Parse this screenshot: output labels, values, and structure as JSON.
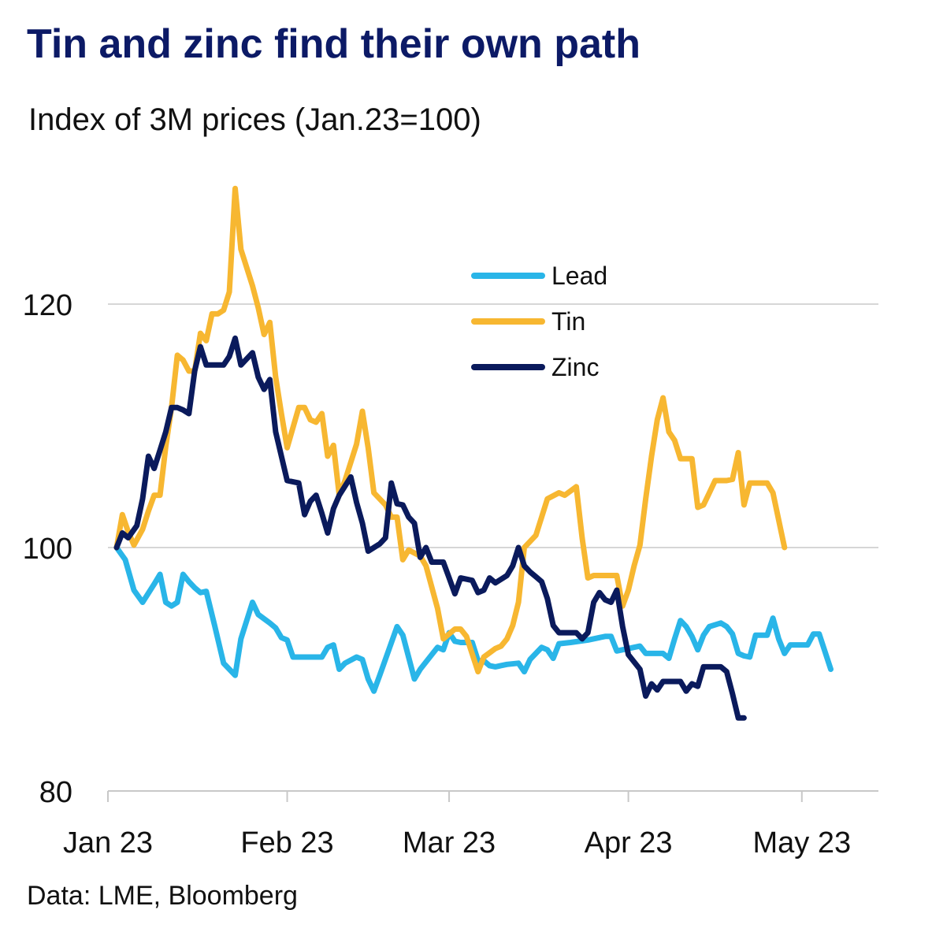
{
  "header": {
    "title": "Tin and zinc find their own path",
    "subtitle": "Index of 3M prices (Jan.23=100)"
  },
  "footer": {
    "source": "Data: LME, Bloomberg"
  },
  "chart_data": {
    "type": "line",
    "title": "Tin and zinc find their own path",
    "subtitle": "Index of 3M prices (Jan.23=100)",
    "xlabel": "",
    "ylabel": "",
    "ylim": [
      80,
      120
    ],
    "yticks": [
      80,
      100,
      120
    ],
    "x_ticks": [
      {
        "label": "Jan 23",
        "day": 0
      },
      {
        "label": "Feb 23",
        "day": 31
      },
      {
        "label": "Mar 23",
        "day": 59
      },
      {
        "label": "Apr 23",
        "day": 90
      },
      {
        "label": "May 23",
        "day": 120
      }
    ],
    "x_range_days": [
      0,
      131
    ],
    "grid": {
      "horizontal": true,
      "vertical": false
    },
    "legend": {
      "placement": "top-right"
    },
    "series": [
      {
        "name": "Lead",
        "color": "#29b5e8",
        "points": [
          [
            1.5,
            100
          ],
          [
            3,
            99
          ],
          [
            4.5,
            96.5
          ],
          [
            6,
            95.5
          ],
          [
            8,
            97
          ],
          [
            9,
            97.8
          ],
          [
            10,
            95.5
          ],
          [
            11,
            95.2
          ],
          [
            12,
            95.5
          ],
          [
            13,
            97.8
          ],
          [
            14,
            97.2
          ],
          [
            15,
            96.7
          ],
          [
            16,
            96.3
          ],
          [
            17,
            96.4
          ],
          [
            18.5,
            93.5
          ],
          [
            20,
            90.5
          ],
          [
            22,
            89.5
          ],
          [
            23,
            92.5
          ],
          [
            25,
            95.5
          ],
          [
            26,
            94.5
          ],
          [
            28,
            93.8
          ],
          [
            29,
            93.4
          ],
          [
            30,
            92.6
          ],
          [
            31,
            92.4
          ],
          [
            32,
            91
          ],
          [
            34,
            91
          ],
          [
            35,
            91
          ],
          [
            37,
            91
          ],
          [
            38,
            91.8
          ],
          [
            39,
            92
          ],
          [
            40,
            90
          ],
          [
            41,
            90.5
          ],
          [
            43,
            91
          ],
          [
            44,
            90.8
          ],
          [
            45,
            89.2
          ],
          [
            46,
            88.2
          ],
          [
            47,
            89.5
          ],
          [
            50,
            93.5
          ],
          [
            51,
            92.8
          ],
          [
            53,
            89.2
          ],
          [
            54,
            90
          ],
          [
            56,
            91.2
          ],
          [
            57,
            91.8
          ],
          [
            58,
            91.6
          ],
          [
            59,
            93
          ],
          [
            60,
            92.3
          ],
          [
            61,
            92.2
          ],
          [
            63,
            92.2
          ],
          [
            64,
            90.7
          ],
          [
            65,
            90.7
          ],
          [
            66,
            90.3
          ],
          [
            67,
            90.2
          ],
          [
            69,
            90.4
          ],
          [
            71,
            90.5
          ],
          [
            72,
            89.8
          ],
          [
            73,
            90.8
          ],
          [
            75,
            91.8
          ],
          [
            76,
            91.6
          ],
          [
            77,
            90.9
          ],
          [
            78,
            92.1
          ],
          [
            80,
            92.2
          ],
          [
            83,
            92.4
          ],
          [
            86,
            92.7
          ],
          [
            87,
            92.7
          ],
          [
            88,
            91.5
          ],
          [
            90,
            91.7
          ],
          [
            92,
            91.9
          ],
          [
            93,
            91.3
          ],
          [
            94,
            91.3
          ],
          [
            96,
            91.3
          ],
          [
            97,
            90.9
          ],
          [
            98,
            92.5
          ],
          [
            99,
            94
          ],
          [
            100,
            93.5
          ],
          [
            101,
            92.7
          ],
          [
            102,
            91.6
          ],
          [
            103,
            92.8
          ],
          [
            104,
            93.5
          ],
          [
            106,
            93.8
          ],
          [
            107,
            93.5
          ],
          [
            108,
            92.9
          ],
          [
            109,
            91.3
          ],
          [
            110,
            91.1
          ],
          [
            111,
            91
          ],
          [
            112,
            92.8
          ],
          [
            113,
            92.8
          ],
          [
            114,
            92.8
          ],
          [
            115,
            94.2
          ],
          [
            116,
            92.5
          ],
          [
            117,
            91.3
          ],
          [
            118,
            92
          ],
          [
            120,
            92
          ],
          [
            121,
            92
          ],
          [
            122,
            92.9
          ],
          [
            123,
            92.9
          ],
          [
            125,
            90
          ]
        ]
      },
      {
        "name": "Tin",
        "color": "#f7b731",
        "points": [
          [
            1.5,
            100
          ],
          [
            2.5,
            102.7
          ],
          [
            3.5,
            101.3
          ],
          [
            4.5,
            100.2
          ],
          [
            6,
            101.5
          ],
          [
            7,
            103
          ],
          [
            8,
            104.3
          ],
          [
            9,
            104.3
          ],
          [
            10,
            108.3
          ],
          [
            11,
            111.5
          ],
          [
            12,
            115.8
          ],
          [
            13,
            115.4
          ],
          [
            14,
            114.5
          ],
          [
            15,
            114.5
          ],
          [
            16,
            117.6
          ],
          [
            17,
            117
          ],
          [
            18,
            119.2
          ],
          [
            19,
            119.2
          ],
          [
            20,
            119.5
          ],
          [
            21,
            121
          ],
          [
            22,
            129.5
          ],
          [
            23,
            124.5
          ],
          [
            25,
            121.5
          ],
          [
            26,
            119.7
          ],
          [
            27,
            117.5
          ],
          [
            28,
            118.5
          ],
          [
            29,
            114
          ],
          [
            30,
            111
          ],
          [
            31,
            108.2
          ],
          [
            33,
            111.5
          ],
          [
            34,
            111.5
          ],
          [
            35,
            110.5
          ],
          [
            36,
            110.3
          ],
          [
            37,
            111
          ],
          [
            38,
            107.5
          ],
          [
            39,
            108.4
          ],
          [
            40,
            104.3
          ],
          [
            41,
            105.5
          ],
          [
            43,
            108.5
          ],
          [
            44,
            111.2
          ],
          [
            45,
            108.2
          ],
          [
            46,
            104.5
          ],
          [
            48,
            103.5
          ],
          [
            49,
            102.5
          ],
          [
            50,
            102.5
          ],
          [
            51,
            99
          ],
          [
            52,
            99.8
          ],
          [
            54,
            99.3
          ],
          [
            55,
            98.5
          ],
          [
            57,
            95
          ],
          [
            58,
            92.5
          ],
          [
            60,
            93.3
          ],
          [
            61,
            93.3
          ],
          [
            62,
            92.7
          ],
          [
            64,
            89.8
          ],
          [
            65,
            91
          ],
          [
            67,
            91.7
          ],
          [
            68,
            91.9
          ],
          [
            69,
            92.5
          ],
          [
            70,
            93.6
          ],
          [
            71,
            95.5
          ],
          [
            72,
            100
          ],
          [
            74,
            101
          ],
          [
            75,
            102.5
          ],
          [
            76,
            104
          ],
          [
            78,
            104.5
          ],
          [
            79,
            104.3
          ],
          [
            81,
            105
          ],
          [
            82,
            100.8
          ],
          [
            83,
            97.5
          ],
          [
            84,
            97.7
          ],
          [
            86,
            97.7
          ],
          [
            88,
            97.7
          ],
          [
            89,
            95.2
          ],
          [
            90,
            96.5
          ],
          [
            91,
            98.5
          ],
          [
            92,
            100.2
          ],
          [
            93,
            104
          ],
          [
            94,
            107.5
          ],
          [
            95,
            110.5
          ],
          [
            96,
            112.3
          ],
          [
            97,
            109.5
          ],
          [
            98,
            108.8
          ],
          [
            99,
            107.3
          ],
          [
            101,
            107.3
          ],
          [
            102,
            103.3
          ],
          [
            103,
            103.5
          ],
          [
            104,
            104.5
          ],
          [
            105,
            105.5
          ],
          [
            107,
            105.5
          ],
          [
            108,
            105.6
          ],
          [
            109,
            107.8
          ],
          [
            110,
            103.5
          ],
          [
            111,
            105.3
          ],
          [
            112,
            105.3
          ],
          [
            114,
            105.3
          ],
          [
            115,
            104.5
          ],
          [
            117,
            100
          ]
        ]
      },
      {
        "name": "Zinc",
        "color": "#0a1a5c",
        "points": [
          [
            1.5,
            100
          ],
          [
            2.5,
            101.2
          ],
          [
            3.5,
            100.8
          ],
          [
            5,
            101.8
          ],
          [
            6,
            104
          ],
          [
            7,
            107.5
          ],
          [
            8,
            106.5
          ],
          [
            9,
            108
          ],
          [
            10,
            109.5
          ],
          [
            11,
            111.5
          ],
          [
            12,
            111.5
          ],
          [
            13,
            111.3
          ],
          [
            14,
            111
          ],
          [
            15,
            114.5
          ],
          [
            16,
            116.5
          ],
          [
            17,
            115
          ],
          [
            18,
            115
          ],
          [
            20,
            115
          ],
          [
            21,
            115.7
          ],
          [
            22,
            117.2
          ],
          [
            23,
            115
          ],
          [
            24,
            115.5
          ],
          [
            25,
            116
          ],
          [
            26,
            114
          ],
          [
            27,
            113
          ],
          [
            28,
            113.8
          ],
          [
            29,
            109.5
          ],
          [
            30,
            107.5
          ],
          [
            31,
            105.5
          ],
          [
            33,
            105.3
          ],
          [
            34,
            102.7
          ],
          [
            35,
            103.8
          ],
          [
            36,
            104.3
          ],
          [
            37,
            102.8
          ],
          [
            38,
            101.2
          ],
          [
            39,
            103.2
          ],
          [
            40,
            104.3
          ],
          [
            42,
            105.8
          ],
          [
            43,
            103.7
          ],
          [
            44,
            102
          ],
          [
            45,
            99.7
          ],
          [
            47,
            100.3
          ],
          [
            48,
            100.8
          ],
          [
            49,
            105.3
          ],
          [
            50,
            103.6
          ],
          [
            51,
            103.5
          ],
          [
            52,
            102.5
          ],
          [
            53,
            102
          ],
          [
            54,
            99.2
          ],
          [
            55,
            100
          ],
          [
            56,
            98.8
          ],
          [
            58,
            98.8
          ],
          [
            59,
            97.5
          ],
          [
            60,
            96.2
          ],
          [
            61,
            97.5
          ],
          [
            63,
            97.3
          ],
          [
            64,
            96.3
          ],
          [
            65,
            96.5
          ],
          [
            66,
            97.5
          ],
          [
            67,
            97.1
          ],
          [
            69,
            97.7
          ],
          [
            70,
            98.5
          ],
          [
            71,
            100
          ],
          [
            72,
            98.5
          ],
          [
            73,
            98
          ],
          [
            74,
            97.6
          ],
          [
            75,
            97.2
          ],
          [
            76,
            95.8
          ],
          [
            77,
            93.6
          ],
          [
            78,
            93
          ],
          [
            79,
            93
          ],
          [
            81,
            93
          ],
          [
            82,
            92.5
          ],
          [
            83,
            93
          ],
          [
            84,
            95.5
          ],
          [
            85,
            96.3
          ],
          [
            86,
            95.7
          ],
          [
            87,
            95.5
          ],
          [
            88,
            96.5
          ],
          [
            89,
            93.5
          ],
          [
            90,
            91.2
          ],
          [
            92,
            90
          ],
          [
            93,
            87.8
          ],
          [
            94,
            88.8
          ],
          [
            95,
            88.3
          ],
          [
            96,
            89
          ],
          [
            97,
            89
          ],
          [
            99,
            89
          ],
          [
            100,
            88.2
          ],
          [
            101,
            88.8
          ],
          [
            102,
            88.6
          ],
          [
            103,
            90.2
          ],
          [
            104,
            90.2
          ],
          [
            106,
            90.2
          ],
          [
            107,
            89.8
          ],
          [
            108,
            88
          ],
          [
            109,
            86
          ],
          [
            110,
            86
          ]
        ]
      }
    ]
  }
}
